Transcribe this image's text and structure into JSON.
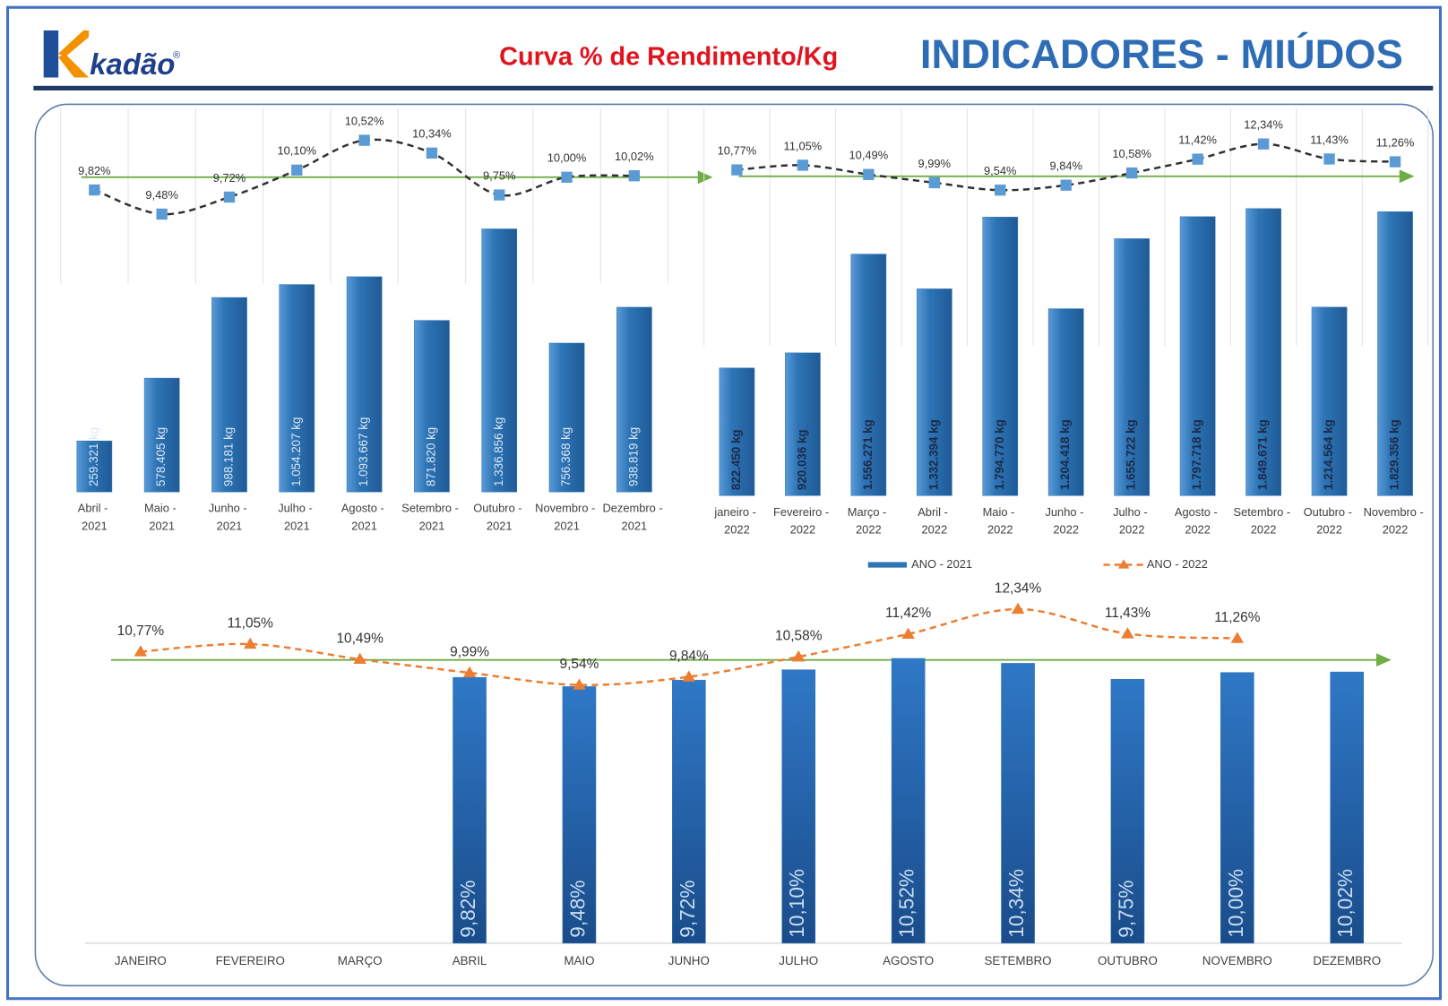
{
  "header": {
    "logo": "kadão",
    "logo_mark": "®",
    "subtitle": "Curva % de Rendimento/Kg",
    "title": "INDICADORES - MIÚDOS"
  },
  "chart_data": [
    {
      "type": "bar-line",
      "categories": [
        "Abril - 2021",
        "Maio - 2021",
        "Junho - 2021",
        "Julho - 2021",
        "Agosto - 2021",
        "Setembro - 2021",
        "Outubro - 2021",
        "Novembro - 2021",
        "Dezembro - 2021"
      ],
      "series": [
        {
          "type": "bar",
          "color": "#2e75b6",
          "values": [
            259321,
            578405,
            988181,
            1054207,
            1093667,
            871820,
            1336856,
            756368,
            938819
          ],
          "value_labels": [
            "259.321 kg",
            "578.405 kg",
            "988.181 kg",
            "1.054.207 kg",
            "1.093.667 kg",
            "871.820 kg",
            "1.336.856 kg",
            "756.368 kg",
            "938.819 kg"
          ]
        },
        {
          "type": "line",
          "color": "#303030",
          "marker_color": "#5b9bd5",
          "values": [
            9.82,
            9.48,
            9.72,
            10.1,
            10.52,
            10.34,
            9.75,
            10.0,
            10.02
          ],
          "value_labels": [
            "9,82%",
            "9,48%",
            "9,72%",
            "10,10%",
            "10,52%",
            "10,34%",
            "9,75%",
            "10,00%",
            "10,02%"
          ]
        }
      ]
    },
    {
      "type": "bar-line",
      "categories": [
        "janeiro - 2022",
        "Fevereiro - 2022",
        "Março - 2022",
        "Abril - 2022",
        "Maio - 2022",
        "Junho - 2022",
        "Julho - 2022",
        "Agosto - 2022",
        "Setembro - 2022",
        "Outubro - 2022",
        "Novembro - 2022"
      ],
      "series": [
        {
          "type": "bar",
          "color": "#2e75b6",
          "values": [
            822450,
            920036,
            1556271,
            1332394,
            1794770,
            1204418,
            1655722,
            1797718,
            1849671,
            1214564,
            1829356
          ],
          "value_labels": [
            "822.450 kg",
            "920.036 kg",
            "1.556.271 kg",
            "1.332.394 kg",
            "1.794.770 kg",
            "1.204.418 kg",
            "1.655.722 kg",
            "1.797.718 kg",
            "1.849.671 kg",
            "1.214.564 kg",
            "1.829.356 kg"
          ]
        },
        {
          "type": "line",
          "color": "#303030",
          "marker_color": "#5b9bd5",
          "values": [
            10.77,
            11.05,
            10.49,
            9.99,
            9.54,
            9.84,
            10.58,
            11.42,
            12.34,
            11.43,
            11.26
          ],
          "value_labels": [
            "10,77%",
            "11,05%",
            "10,49%",
            "9,99%",
            "9,54%",
            "9,84%",
            "10,58%",
            "11,42%",
            "12,34%",
            "11,43%",
            "11,26%"
          ]
        }
      ]
    },
    {
      "type": "bar-line-shared",
      "categories": [
        "JANEIRO",
        "FEVEREIRO",
        "MARÇO",
        "ABRIL",
        "MAIO",
        "JUNHO",
        "JULHO",
        "AGOSTO",
        "SETEMBRO",
        "OUTUBRO",
        "NOVEMBRO",
        "DEZEMBRO"
      ],
      "legend": "top",
      "series": [
        {
          "name": "ANO - 2021",
          "type": "bar",
          "color": "#2e75b6",
          "values": [
            null,
            null,
            null,
            9.82,
            9.48,
            9.72,
            10.1,
            10.52,
            10.34,
            9.75,
            10.0,
            10.02
          ],
          "value_labels": [
            null,
            null,
            null,
            "9,82%",
            "9,48%",
            "9,72%",
            "10,10%",
            "10,52%",
            "10,34%",
            "9,75%",
            "10,00%",
            "10,02%"
          ]
        },
        {
          "name": "ANO - 2022",
          "type": "line",
          "color": "#ed7d31",
          "values": [
            10.77,
            11.05,
            10.49,
            9.99,
            9.54,
            9.84,
            10.58,
            11.42,
            12.34,
            11.43,
            11.26,
            null
          ],
          "value_labels": [
            "10,77%",
            "11,05%",
            "10,49%",
            "9,99%",
            "9,54%",
            "9,84%",
            "10,58%",
            "11,42%",
            "12,34%",
            "11,43%",
            "11,26%",
            null
          ]
        }
      ]
    }
  ]
}
